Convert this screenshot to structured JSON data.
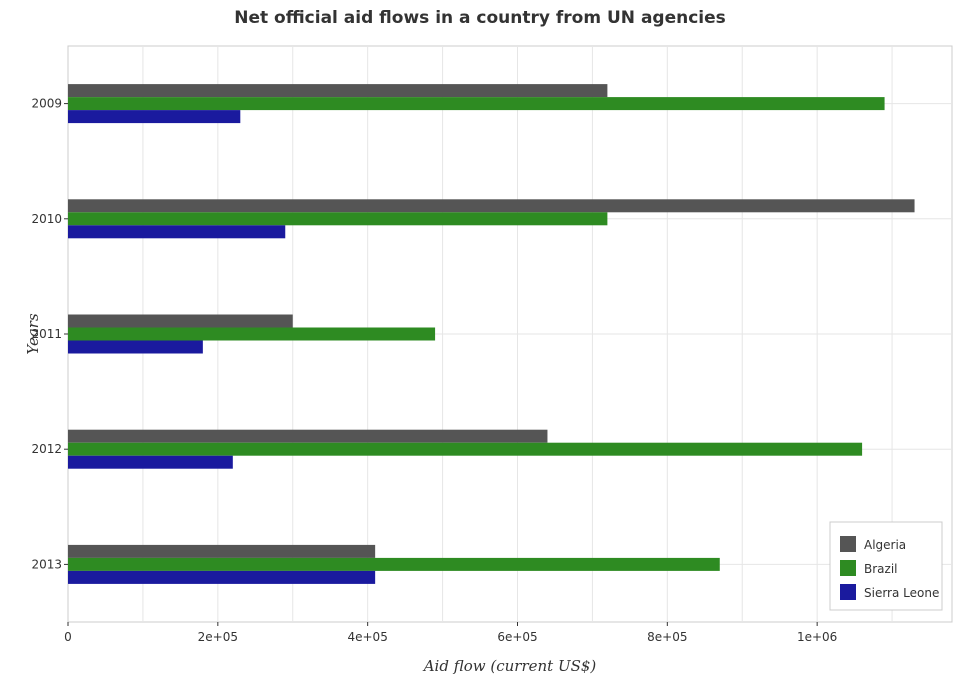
{
  "chart_data": {
    "type": "bar",
    "orientation": "horizontal",
    "title": "Net official aid flows in a country from UN agencies",
    "xlabel": "Aid flow (current US$)",
    "ylabel": "Years",
    "categories": [
      "2009",
      "2010",
      "2011",
      "2012",
      "2013"
    ],
    "series": [
      {
        "name": "Algeria",
        "color": "#555555",
        "values": [
          720000,
          1130000,
          300000,
          640000,
          410000
        ]
      },
      {
        "name": "Brazil",
        "color": "#2e8b22",
        "values": [
          1090000,
          720000,
          490000,
          1060000,
          870000
        ]
      },
      {
        "name": "Sierra Leone",
        "color": "#1a1a9e",
        "values": [
          230000,
          290000,
          180000,
          220000,
          410000
        ]
      }
    ],
    "xlim": [
      0,
      1180000
    ],
    "xticks": [
      0,
      200000,
      400000,
      600000,
      800000,
      1000000
    ],
    "xtick_labels": [
      "0",
      "2e+05",
      "4e+05",
      "6e+05",
      "8e+05",
      "1e+06"
    ],
    "grid": true,
    "legend_position": "bottom-right"
  }
}
